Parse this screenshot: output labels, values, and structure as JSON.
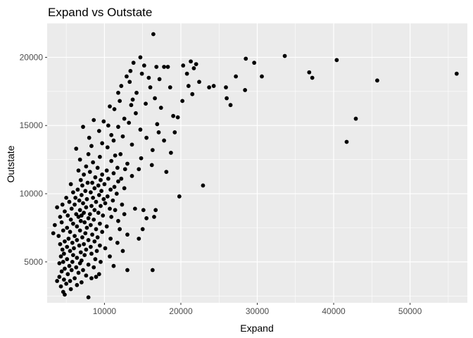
{
  "chart_data": {
    "type": "scatter",
    "title": "Expand vs Outstate",
    "xlabel": "Expand",
    "ylabel": "Outstate",
    "xlim": [
      2500,
      57500
    ],
    "ylim": [
      2000,
      22500
    ],
    "x_ticks": [
      10000,
      20000,
      30000,
      40000,
      50000
    ],
    "y_ticks": [
      5000,
      10000,
      15000,
      20000
    ],
    "x_tick_labels": [
      "10000",
      "20000",
      "30000",
      "40000",
      "50000"
    ],
    "y_tick_labels": [
      "5000",
      "10000",
      "15000",
      "20000"
    ],
    "grid": true,
    "legend": "none",
    "colors": {
      "panel": "#ebebeb",
      "grid": "#ffffff",
      "point": "#000000"
    },
    "points": [
      [
        16400,
        21700
      ],
      [
        14700,
        20000
      ],
      [
        13800,
        19600
      ],
      [
        15200,
        19400
      ],
      [
        16800,
        19300
      ],
      [
        17800,
        19300
      ],
      [
        18300,
        19300
      ],
      [
        13400,
        19000
      ],
      [
        14900,
        18800
      ],
      [
        12900,
        18600
      ],
      [
        15800,
        18500
      ],
      [
        17200,
        18400
      ],
      [
        13300,
        18200
      ],
      [
        12200,
        17900
      ],
      [
        16000,
        17800
      ],
      [
        18600,
        17800
      ],
      [
        11800,
        17400
      ],
      [
        14200,
        17400
      ],
      [
        16600,
        17000
      ],
      [
        13700,
        16900
      ],
      [
        12000,
        16800
      ],
      [
        15400,
        16600
      ],
      [
        10700,
        16400
      ],
      [
        13500,
        16500
      ],
      [
        17400,
        16300
      ],
      [
        11300,
        16200
      ],
      [
        14100,
        15900
      ],
      [
        19000,
        15700
      ],
      [
        19600,
        15600
      ],
      [
        12600,
        15500
      ],
      [
        8600,
        15400
      ],
      [
        9900,
        15300
      ],
      [
        13200,
        15200
      ],
      [
        16900,
        15100
      ],
      [
        10500,
        15000
      ],
      [
        7200,
        14900
      ],
      [
        11800,
        14900
      ],
      [
        14700,
        14700
      ],
      [
        9300,
        14600
      ],
      [
        17100,
        14500
      ],
      [
        19200,
        14500
      ],
      [
        10900,
        14300
      ],
      [
        12400,
        14200
      ],
      [
        8000,
        14100
      ],
      [
        15500,
        14100
      ],
      [
        11200,
        13900
      ],
      [
        17800,
        13900
      ],
      [
        9700,
        13700
      ],
      [
        13600,
        13600
      ],
      [
        8300,
        13500
      ],
      [
        10400,
        13400
      ],
      [
        16300,
        13200
      ],
      [
        6300,
        13300
      ],
      [
        18700,
        13000
      ],
      [
        7900,
        12900
      ],
      [
        12100,
        12900
      ],
      [
        11400,
        12800
      ],
      [
        9400,
        12700
      ],
      [
        14800,
        12600
      ],
      [
        6800,
        12500
      ],
      [
        10900,
        12400
      ],
      [
        8500,
        12300
      ],
      [
        13000,
        12200
      ],
      [
        16200,
        12100
      ],
      [
        7600,
        12000
      ],
      [
        11700,
        11900
      ],
      [
        9100,
        11900
      ],
      [
        12700,
        11800
      ],
      [
        14500,
        11800
      ],
      [
        6600,
        11700
      ],
      [
        10300,
        11700
      ],
      [
        8100,
        11600
      ],
      [
        11200,
        11500
      ],
      [
        18100,
        11600
      ],
      [
        7300,
        11400
      ],
      [
        9700,
        11400
      ],
      [
        13600,
        11300
      ],
      [
        8800,
        11200
      ],
      [
        10500,
        11100
      ],
      [
        12200,
        11100
      ],
      [
        6900,
        11000
      ],
      [
        9500,
        11000
      ],
      [
        11800,
        10900
      ],
      [
        7800,
        10800
      ],
      [
        8400,
        10800
      ],
      [
        10000,
        10700
      ],
      [
        5600,
        10700
      ],
      [
        7100,
        10600
      ],
      [
        9200,
        10600
      ],
      [
        11300,
        10500
      ],
      [
        12600,
        10400
      ],
      [
        22900,
        10600
      ],
      [
        8700,
        10400
      ],
      [
        6500,
        10300
      ],
      [
        10800,
        10300
      ],
      [
        7500,
        10200
      ],
      [
        9600,
        10200
      ],
      [
        5900,
        10100
      ],
      [
        8200,
        10100
      ],
      [
        11600,
        10000
      ],
      [
        7000,
        9900
      ],
      [
        9300,
        9900
      ],
      [
        10400,
        9800
      ],
      [
        19800,
        9800
      ],
      [
        6200,
        9700
      ],
      [
        8500,
        9700
      ],
      [
        5000,
        9700
      ],
      [
        7700,
        9600
      ],
      [
        9900,
        9600
      ],
      [
        11100,
        9500
      ],
      [
        6700,
        9500
      ],
      [
        8900,
        9400
      ],
      [
        5400,
        9400
      ],
      [
        7200,
        9300
      ],
      [
        10100,
        9300
      ],
      [
        12300,
        9200
      ],
      [
        4500,
        9200
      ],
      [
        6100,
        9200
      ],
      [
        8300,
        9100
      ],
      [
        9500,
        9100
      ],
      [
        3800,
        9000
      ],
      [
        7600,
        9000
      ],
      [
        10700,
        8900
      ],
      [
        5700,
        8900
      ],
      [
        6800,
        8800
      ],
      [
        8700,
        8800
      ],
      [
        14000,
        8900
      ],
      [
        15100,
        8800
      ],
      [
        16700,
        8800
      ],
      [
        11400,
        8800
      ],
      [
        4800,
        8700
      ],
      [
        7300,
        8600
      ],
      [
        9200,
        8600
      ],
      [
        6300,
        8500
      ],
      [
        8100,
        8500
      ],
      [
        12600,
        8500
      ],
      [
        5200,
        8400
      ],
      [
        7000,
        8400
      ],
      [
        9800,
        8400
      ],
      [
        10900,
        8300
      ],
      [
        4200,
        8300
      ],
      [
        6600,
        8300
      ],
      [
        16500,
        8300
      ],
      [
        7900,
        8200
      ],
      [
        15500,
        8200
      ],
      [
        5600,
        8100
      ],
      [
        8600,
        8100
      ],
      [
        11800,
        8000
      ],
      [
        6900,
        8000
      ],
      [
        4400,
        7900
      ],
      [
        7400,
        7900
      ],
      [
        9400,
        7800
      ],
      [
        5900,
        7800
      ],
      [
        8200,
        7700
      ],
      [
        3500,
        7700
      ],
      [
        6400,
        7600
      ],
      [
        10300,
        7600
      ],
      [
        7700,
        7500
      ],
      [
        5100,
        7500
      ],
      [
        8900,
        7400
      ],
      [
        12000,
        7400
      ],
      [
        15000,
        7400
      ],
      [
        4600,
        7300
      ],
      [
        6800,
        7300
      ],
      [
        9700,
        7200
      ],
      [
        5500,
        7200
      ],
      [
        7500,
        7100
      ],
      [
        3300,
        7100
      ],
      [
        8400,
        7000
      ],
      [
        13000,
        7000
      ],
      [
        6100,
        6900
      ],
      [
        4000,
        6900
      ],
      [
        9100,
        6800
      ],
      [
        7100,
        6800
      ],
      [
        5300,
        6700
      ],
      [
        10800,
        6700
      ],
      [
        14500,
        6700
      ],
      [
        7900,
        6600
      ],
      [
        6400,
        6600
      ],
      [
        4800,
        6500
      ],
      [
        8700,
        6500
      ],
      [
        5800,
        6400
      ],
      [
        11700,
        6400
      ],
      [
        7300,
        6300
      ],
      [
        4200,
        6300
      ],
      [
        9400,
        6200
      ],
      [
        6700,
        6200
      ],
      [
        5100,
        6100
      ],
      [
        8200,
        6100
      ],
      [
        10100,
        6000
      ],
      [
        6000,
        6000
      ],
      [
        4500,
        5900
      ],
      [
        7600,
        5900
      ],
      [
        5500,
        5800
      ],
      [
        9000,
        5800
      ],
      [
        12400,
        5800
      ],
      [
        6900,
        5700
      ],
      [
        4700,
        5600
      ],
      [
        8300,
        5600
      ],
      [
        5900,
        5500
      ],
      [
        7400,
        5500
      ],
      [
        4300,
        5400
      ],
      [
        10700,
        5400
      ],
      [
        6400,
        5300
      ],
      [
        5100,
        5200
      ],
      [
        8800,
        5200
      ],
      [
        7000,
        5100
      ],
      [
        4600,
        5000
      ],
      [
        5800,
        5000
      ],
      [
        9500,
        5000
      ],
      [
        6800,
        4900
      ],
      [
        4100,
        4900
      ],
      [
        7900,
        4800
      ],
      [
        5400,
        4700
      ],
      [
        11200,
        4700
      ],
      [
        6300,
        4600
      ],
      [
        8600,
        4600
      ],
      [
        4800,
        4500
      ],
      [
        7200,
        4400
      ],
      [
        5700,
        4400
      ],
      [
        13000,
        4400
      ],
      [
        16300,
        4400
      ],
      [
        4400,
        4300
      ],
      [
        6600,
        4200
      ],
      [
        9300,
        4100
      ],
      [
        5200,
        4100
      ],
      [
        7600,
        4000
      ],
      [
        4100,
        3900
      ],
      [
        6100,
        3800
      ],
      [
        8300,
        3800
      ],
      [
        4700,
        3700
      ],
      [
        5500,
        3600
      ],
      [
        3800,
        3600
      ],
      [
        7000,
        3500
      ],
      [
        5000,
        3400
      ],
      [
        6400,
        3300
      ],
      [
        4300,
        3200
      ],
      [
        5600,
        3000
      ],
      [
        4600,
        2800
      ],
      [
        4800,
        2600
      ],
      [
        7900,
        2400
      ],
      [
        8900,
        3900
      ],
      [
        33600,
        20100
      ],
      [
        28500,
        19900
      ],
      [
        29600,
        19600
      ],
      [
        40400,
        19800
      ],
      [
        21300,
        19700
      ],
      [
        22000,
        19500
      ],
      [
        20300,
        19400
      ],
      [
        21700,
        19200
      ],
      [
        36800,
        18900
      ],
      [
        20800,
        18800
      ],
      [
        56100,
        18800
      ],
      [
        27200,
        18600
      ],
      [
        30600,
        18600
      ],
      [
        37200,
        18500
      ],
      [
        45700,
        18300
      ],
      [
        22400,
        18200
      ],
      [
        21000,
        17900
      ],
      [
        23700,
        17800
      ],
      [
        24300,
        17900
      ],
      [
        25900,
        17800
      ],
      [
        28400,
        17600
      ],
      [
        21500,
        17300
      ],
      [
        26000,
        17000
      ],
      [
        20200,
        16800
      ],
      [
        26500,
        16500
      ],
      [
        42900,
        15500
      ],
      [
        41700,
        13800
      ]
    ]
  }
}
